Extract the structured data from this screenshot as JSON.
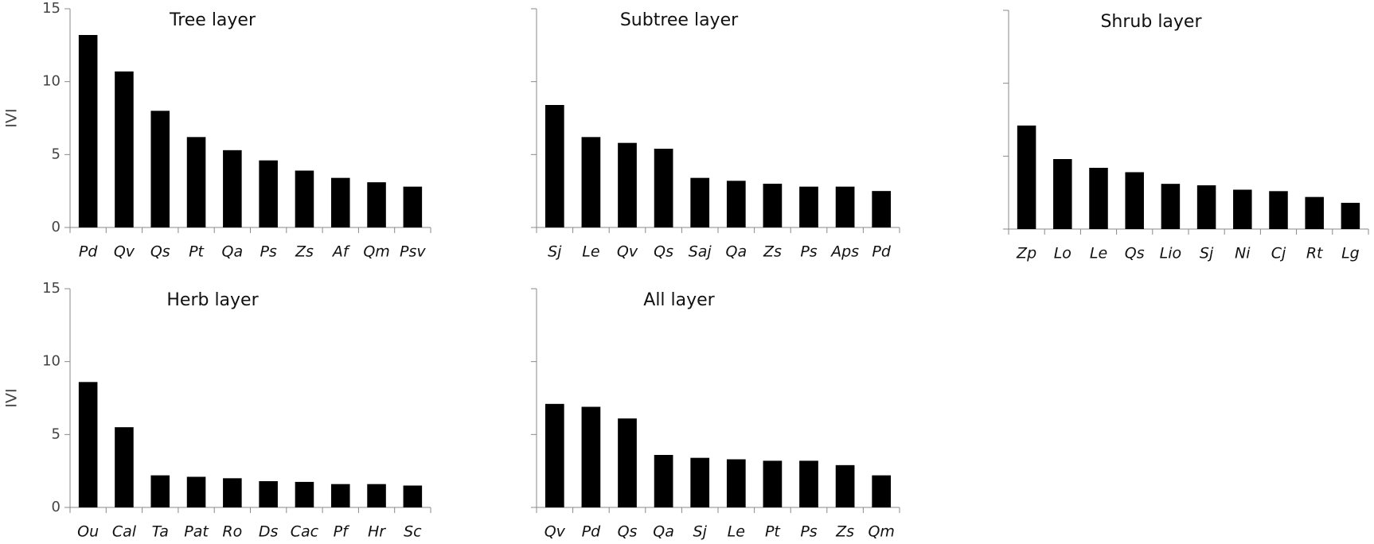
{
  "chart_data": [
    {
      "type": "bar",
      "title": "Tree layer",
      "ylabel": "IVI",
      "ytick_labels": true,
      "color": "#000000",
      "categories": [
        "Pd",
        "Qv",
        "Qs",
        "Pt",
        "Qa",
        "Ps",
        "Zs",
        "Af",
        "Qm",
        "Psv"
      ],
      "values": [
        13.2,
        10.7,
        8.0,
        6.2,
        5.3,
        4.6,
        3.9,
        3.4,
        3.1,
        2.8
      ],
      "ylim": [
        0,
        15
      ],
      "yticks": [
        0,
        5,
        10,
        15
      ]
    },
    {
      "type": "bar",
      "title": "Subtree layer",
      "ytick_labels": false,
      "color": "#000000",
      "categories": [
        "Sj",
        "Le",
        "Qv",
        "Qs",
        "Saj",
        "Qa",
        "Zs",
        "Ps",
        "Aps",
        "Pd"
      ],
      "values": [
        8.4,
        6.2,
        5.8,
        5.4,
        3.4,
        3.2,
        3.0,
        2.8,
        2.8,
        2.5
      ],
      "ylim": [
        0,
        15
      ],
      "yticks": [
        0,
        5,
        10,
        15
      ]
    },
    {
      "type": "bar",
      "title": "Shrub layer",
      "ytick_labels": false,
      "color": "#000000",
      "categories": [
        "Zp",
        "Lo",
        "Le",
        "Qs",
        "Lio",
        "Sj",
        "Ni",
        "Cj",
        "Rt",
        "Lg"
      ],
      "values": [
        7.1,
        4.8,
        4.2,
        3.9,
        3.1,
        3.0,
        2.7,
        2.6,
        2.2,
        1.8
      ],
      "ylim": [
        0,
        15
      ],
      "yticks": [
        0,
        5,
        10,
        15
      ]
    },
    {
      "type": "bar",
      "title": "Herb layer",
      "ylabel": "IVI",
      "ytick_labels": true,
      "color": "#000000",
      "categories": [
        "Ou",
        "Cal",
        "Ta",
        "Pat",
        "Ro",
        "Ds",
        "Cac",
        "Pf",
        "Hr",
        "Sc"
      ],
      "values": [
        8.6,
        5.5,
        2.2,
        2.1,
        2.0,
        1.8,
        1.75,
        1.6,
        1.6,
        1.5
      ],
      "ylim": [
        0,
        15
      ],
      "yticks": [
        0,
        5,
        10,
        15
      ]
    },
    {
      "type": "bar",
      "title": "All layer",
      "ytick_labels": false,
      "color": "#000000",
      "categories": [
        "Qv",
        "Pd",
        "Qs",
        "Qa",
        "Sj",
        "Le",
        "Pt",
        "Ps",
        "Zs",
        "Qm"
      ],
      "values": [
        7.1,
        6.9,
        6.1,
        3.6,
        3.4,
        3.3,
        3.2,
        3.2,
        2.9,
        2.2
      ],
      "ylim": [
        0,
        15
      ],
      "yticks": [
        0,
        5,
        10,
        15
      ]
    }
  ]
}
